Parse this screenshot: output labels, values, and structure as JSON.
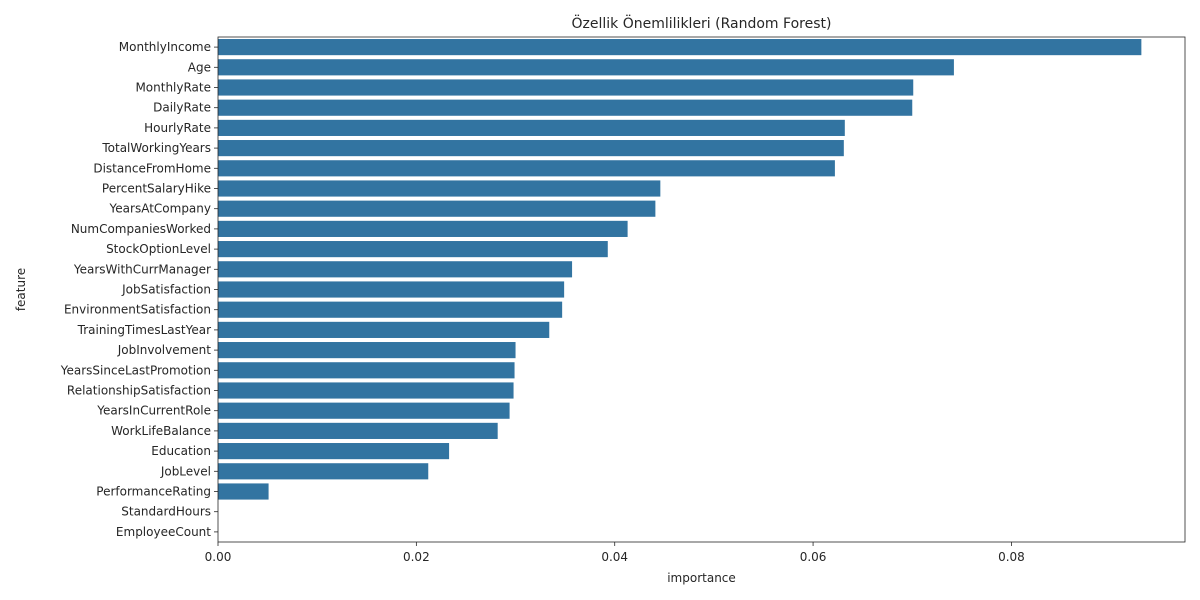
{
  "chart_data": {
    "type": "bar",
    "orientation": "horizontal",
    "title": "Özellik Önemlilikleri (Random Forest)",
    "xlabel": "importance",
    "ylabel": "feature",
    "xlim": [
      0,
      0.0975
    ],
    "xticks": [
      0.0,
      0.02,
      0.04,
      0.06,
      0.08
    ],
    "xtick_labels": [
      "0.00",
      "0.02",
      "0.04",
      "0.06",
      "0.08"
    ],
    "grid": false,
    "color": "#3274a1",
    "categories": [
      "MonthlyIncome",
      "Age",
      "MonthlyRate",
      "DailyRate",
      "HourlyRate",
      "TotalWorkingYears",
      "DistanceFromHome",
      "PercentSalaryHike",
      "YearsAtCompany",
      "NumCompaniesWorked",
      "StockOptionLevel",
      "YearsWithCurrManager",
      "JobSatisfaction",
      "EnvironmentSatisfaction",
      "TrainingTimesLastYear",
      "JobInvolvement",
      "YearsSinceLastPromotion",
      "RelationshipSatisfaction",
      "YearsInCurrentRole",
      "WorkLifeBalance",
      "Education",
      "JobLevel",
      "PerformanceRating",
      "StandardHours",
      "EmployeeCount"
    ],
    "values": [
      0.0931,
      0.0742,
      0.0701,
      0.07,
      0.0632,
      0.0631,
      0.0622,
      0.0446,
      0.0441,
      0.0413,
      0.0393,
      0.0357,
      0.0349,
      0.0347,
      0.0334,
      0.03,
      0.0299,
      0.0298,
      0.0294,
      0.0282,
      0.0233,
      0.0212,
      0.0051,
      0.0,
      0.0
    ]
  }
}
